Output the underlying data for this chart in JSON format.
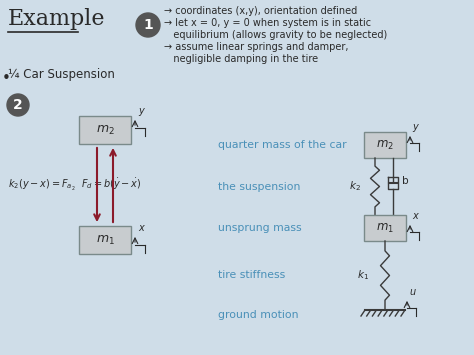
{
  "bg_color": "#cfdde8",
  "title": "Example",
  "subtitle": "¼ Car Suspension",
  "circle1_label": "1",
  "circle2_label": "2",
  "bullet1_lines": [
    "→ coordinates (x,y), orientation defined",
    "→ let x = 0, y = 0 when system is in static",
    "   equilibrium (allows gravity to be neglected)",
    "→ assume linear springs and damper,",
    "   negligible damping in the tire"
  ],
  "labels_right": [
    "quarter mass of the car",
    "the suspension",
    "unsprung mass",
    "tire stiffness",
    "ground motion"
  ],
  "label_color": "#4a90b8",
  "box_facecolor": "#c8cccf",
  "box_edgecolor": "#7a8a8a",
  "arrow_color": "#8b1a2a",
  "dark_text": "#2a2a2a",
  "circle_color": "#555555",
  "fig_w": 4.74,
  "fig_h": 3.55,
  "dpi": 100
}
